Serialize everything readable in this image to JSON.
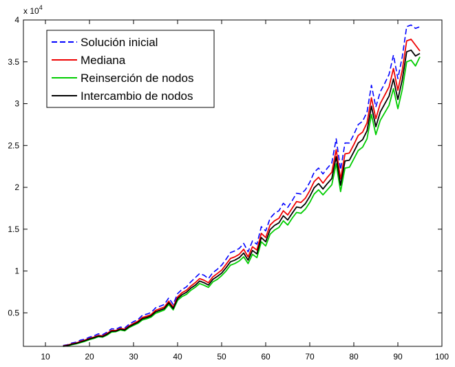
{
  "chart_data": {
    "type": "line",
    "title": "",
    "xlabel": "",
    "ylabel": "",
    "y_exponent_label": "x 10",
    "y_exponent_power": "4",
    "xlim": [
      5,
      100
    ],
    "ylim": [
      1000,
      40000
    ],
    "xticks": [
      10,
      20,
      30,
      40,
      50,
      60,
      70,
      80,
      90,
      100
    ],
    "xtick_labels": [
      "10",
      "20",
      "30",
      "40",
      "50",
      "60",
      "70",
      "80",
      "90",
      "100"
    ],
    "yticks": [
      5000,
      10000,
      15000,
      20000,
      25000,
      30000,
      35000,
      40000
    ],
    "ytick_labels": [
      "0.5",
      "1",
      "1.5",
      "2",
      "2.5",
      "3",
      "3.5",
      "4"
    ],
    "grid": false,
    "legend_position": "top-left",
    "x": [
      14,
      15,
      16,
      17,
      18,
      19,
      20,
      21,
      22,
      23,
      24,
      25,
      26,
      27,
      28,
      29,
      30,
      31,
      32,
      33,
      34,
      35,
      36,
      37,
      38,
      39,
      40,
      41,
      42,
      43,
      44,
      45,
      46,
      47,
      48,
      49,
      50,
      51,
      52,
      53,
      54,
      55,
      56,
      57,
      58,
      59,
      60,
      61,
      62,
      63,
      64,
      65,
      66,
      67,
      68,
      69,
      70,
      71,
      72,
      73,
      74,
      75,
      76,
      77,
      78,
      79,
      80,
      81,
      82,
      83,
      84,
      85,
      86,
      87,
      88,
      89,
      90,
      91,
      92,
      93,
      94,
      95
    ],
    "series": [
      {
        "name": "Solución inicial",
        "color": "#0000ff",
        "style": "dashed",
        "values": [
          1100,
          1200,
          1400,
          1500,
          1750,
          1850,
          2100,
          2250,
          2500,
          2400,
          2700,
          3100,
          3050,
          3300,
          3200,
          3650,
          3950,
          4200,
          4700,
          4850,
          5050,
          5600,
          5800,
          6000,
          6800,
          6000,
          7300,
          7800,
          8100,
          8700,
          9200,
          9700,
          9500,
          9100,
          9800,
          10200,
          10700,
          11400,
          12200,
          12400,
          12700,
          13300,
          12300,
          13600,
          13200,
          15300,
          14800,
          16300,
          16900,
          17200,
          18100,
          17600,
          18400,
          19300,
          19200,
          19700,
          20600,
          21800,
          22300,
          21600,
          22300,
          22900,
          25800,
          22100,
          25300,
          25300,
          26300,
          27500,
          27900,
          29000,
          32200,
          29600,
          31400,
          32400,
          33500,
          35800,
          33000,
          35600,
          39200,
          39400,
          39000,
          39200
        ]
      },
      {
        "name": "Mediana",
        "color": "#ee0000",
        "style": "solid",
        "values": [
          1050,
          1150,
          1300,
          1400,
          1600,
          1750,
          1950,
          2100,
          2300,
          2250,
          2550,
          2900,
          2900,
          3150,
          3050,
          3450,
          3750,
          4000,
          4450,
          4600,
          4800,
          5300,
          5500,
          5700,
          6400,
          5700,
          6900,
          7400,
          7700,
          8200,
          8600,
          9100,
          8900,
          8600,
          9300,
          9700,
          10100,
          10800,
          11500,
          11700,
          12000,
          12600,
          11700,
          12900,
          12500,
          14500,
          14000,
          15500,
          16000,
          16300,
          17200,
          16700,
          17500,
          18300,
          18200,
          18700,
          19600,
          20700,
          21200,
          20500,
          21200,
          21800,
          24500,
          21000,
          24000,
          24100,
          25100,
          26200,
          26600,
          27700,
          30700,
          28200,
          30000,
          31000,
          32000,
          34200,
          31600,
          34000,
          37500,
          37700,
          37000,
          36300
        ]
      },
      {
        "name": "Reinserción de nodos",
        "color": "#00cc00",
        "style": "solid",
        "values": [
          1000,
          1050,
          1200,
          1300,
          1450,
          1600,
          1800,
          1950,
          2150,
          2100,
          2350,
          2700,
          2750,
          2950,
          2850,
          3250,
          3500,
          3750,
          4150,
          4300,
          4500,
          4950,
          5150,
          5350,
          6000,
          5350,
          6500,
          6950,
          7200,
          7700,
          8050,
          8500,
          8300,
          8050,
          8700,
          9000,
          9450,
          10000,
          10700,
          10900,
          11200,
          11700,
          10900,
          12000,
          11600,
          13500,
          13000,
          14400,
          14900,
          15200,
          16000,
          15500,
          16300,
          17000,
          16900,
          17400,
          18200,
          19200,
          19700,
          19100,
          19700,
          20300,
          22800,
          19500,
          22300,
          22400,
          23400,
          24400,
          24800,
          25800,
          28700,
          26300,
          28000,
          28900,
          29800,
          31800,
          29400,
          31700,
          35000,
          35200,
          34500,
          35600
        ]
      },
      {
        "name": "Intercambio de nodos",
        "color": "#000000",
        "style": "solid",
        "values": [
          1020,
          1100,
          1250,
          1350,
          1520,
          1680,
          1880,
          2030,
          2220,
          2170,
          2450,
          2800,
          2820,
          3050,
          2950,
          3350,
          3620,
          3870,
          4300,
          4450,
          4650,
          5120,
          5320,
          5520,
          6200,
          5520,
          6700,
          7170,
          7450,
          7950,
          8300,
          8800,
          8600,
          8320,
          9000,
          9350,
          9750,
          10400,
          11100,
          11300,
          11600,
          12150,
          11300,
          12450,
          12050,
          14000,
          13500,
          14950,
          15450,
          15750,
          16600,
          16100,
          16900,
          17650,
          17550,
          18050,
          18900,
          19950,
          20450,
          19800,
          20450,
          21050,
          23650,
          20250,
          23150,
          23250,
          24250,
          25300,
          25700,
          26750,
          29700,
          27250,
          29000,
          29950,
          30900,
          32950,
          30500,
          32850,
          36200,
          36400,
          35700,
          36000
        ]
      }
    ]
  }
}
